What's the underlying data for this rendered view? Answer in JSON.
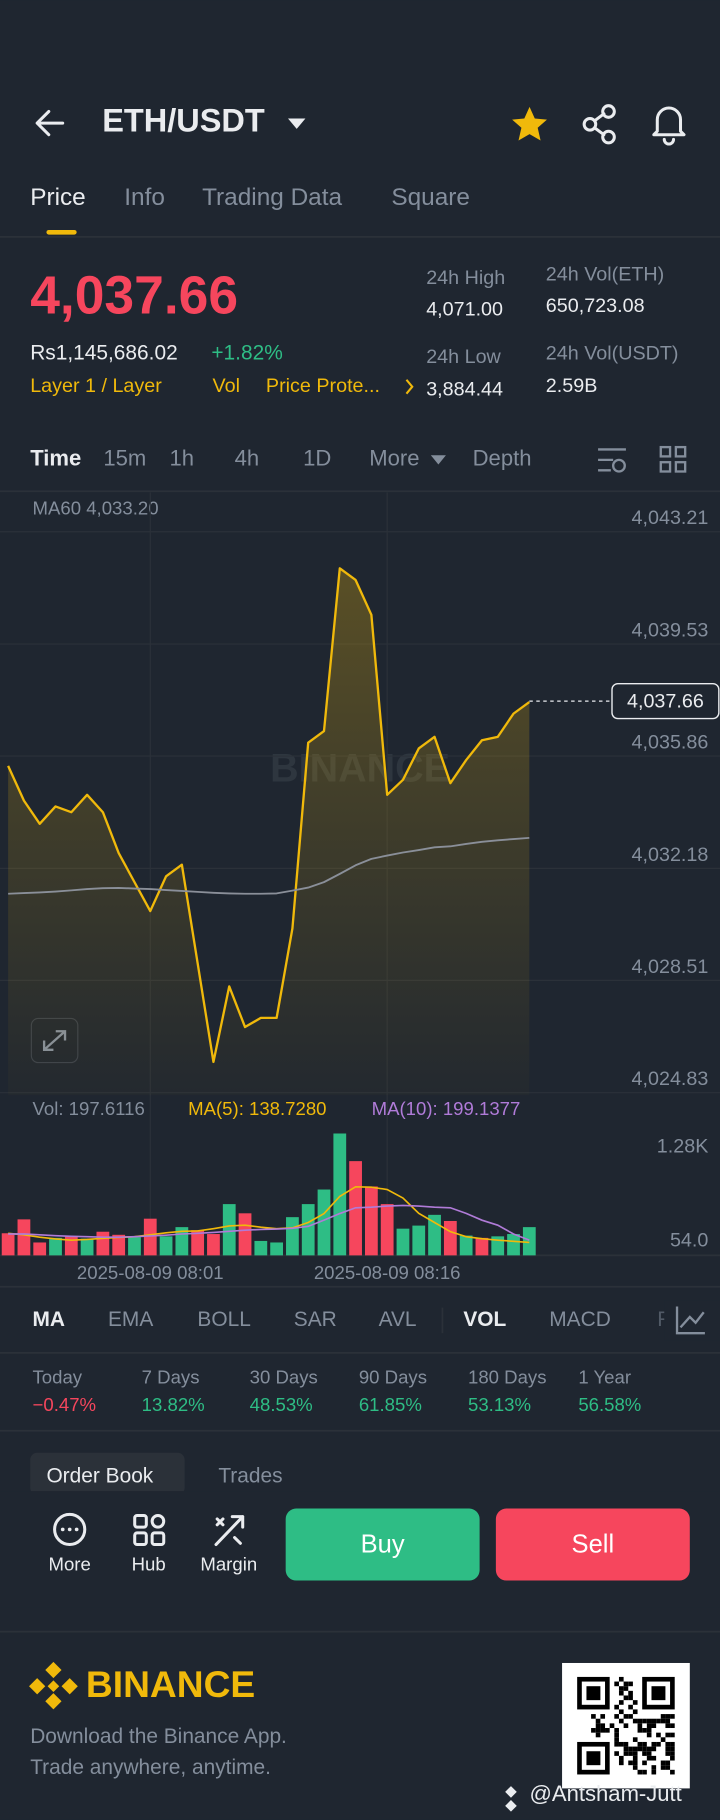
{
  "header": {
    "pair": "ETH/USDT"
  },
  "tabs": [
    "Price",
    "Info",
    "Trading Data",
    "Square"
  ],
  "ticker": {
    "price": "4,037.66",
    "fiat": "Rs1,145,686.02",
    "change": "+1.82%",
    "tags": [
      "Layer 1 / Layer",
      "Vol",
      "Price Prote..."
    ],
    "stats": [
      {
        "label": "24h High",
        "value": "4,071.00"
      },
      {
        "label": "24h Vol(ETH)",
        "value": "650,723.08"
      },
      {
        "label": "24h Low",
        "value": "3,884.44"
      },
      {
        "label": "24h Vol(USDT)",
        "value": "2.59B"
      }
    ]
  },
  "intervals": [
    "Time",
    "15m",
    "1h",
    "4h",
    "1D",
    "More",
    "Depth"
  ],
  "chart": {
    "type": "line",
    "ma60_label": "MA60 4,033.20",
    "watermark": "BINANCE",
    "categories": [
      null,
      null,
      null,
      null,
      null,
      null,
      null,
      null,
      null,
      "2025-08-09 08:01",
      null,
      null,
      null,
      null,
      null,
      null,
      null,
      null,
      null,
      null,
      null,
      null,
      null,
      null,
      "2025-08-09 08:16",
      null,
      null,
      null,
      null,
      null,
      null,
      null,
      null,
      null
    ],
    "series": [
      {
        "name": "Price",
        "color": "#f0b90b",
        "values": [
          4035.54,
          4034.4,
          4033.64,
          4034.21,
          4034.02,
          4034.59,
          4034.02,
          4032.68,
          4031.73,
          4030.78,
          4031.92,
          4032.3,
          4029.07,
          4025.84,
          4028.31,
          4026.98,
          4027.28,
          4027.28,
          4030.21,
          4036.3,
          4036.68,
          4042.01,
          4041.63,
          4040.49,
          4034.59,
          4035.08,
          4036.11,
          4036.49,
          4034.97,
          4035.73,
          4036.38,
          4036.49,
          4037.25,
          4037.63
        ]
      },
      {
        "name": "MA60",
        "color": "#8a8f99",
        "values": [
          4031.35,
          4031.37,
          4031.39,
          4031.42,
          4031.46,
          4031.5,
          4031.53,
          4031.54,
          4031.52,
          4031.5,
          4031.47,
          4031.44,
          4031.41,
          4031.38,
          4031.36,
          4031.35,
          4031.35,
          4031.36,
          4031.45,
          4031.55,
          4031.73,
          4032.0,
          4032.28,
          4032.49,
          4032.6,
          4032.7,
          4032.78,
          4032.87,
          4032.9,
          4032.98,
          4033.05,
          4033.1,
          4033.14,
          4033.18
        ]
      }
    ],
    "last_price": {
      "value": 4037.66,
      "label": "4,037.66"
    },
    "ylim": [
      4024.75,
      4044.5
    ],
    "yticks": [
      {
        "value": 4043.21,
        "label": "4,043.21"
      },
      {
        "value": 4039.53,
        "label": "4,039.53"
      },
      {
        "value": 4035.86,
        "label": "4,035.86"
      },
      {
        "value": 4032.18,
        "label": "4,032.18"
      },
      {
        "value": 4028.51,
        "label": "4,028.51"
      },
      {
        "value": 4024.83,
        "label": "4,024.83"
      }
    ]
  },
  "volume": {
    "type": "bar",
    "vol_label": "Vol: 197.6116",
    "ma5_label": "MA(5): 138.7280",
    "ma10_label": "MA(10): 199.1377",
    "values": [
      160,
      341,
      40,
      100,
      120,
      90,
      180,
      140,
      110,
      350,
      120,
      240,
      200,
      150,
      540,
      420,
      60,
      40,
      370,
      540,
      730,
      1460,
      1100,
      770,
      540,
      220,
      260,
      400,
      320,
      130,
      100,
      120,
      150,
      240
    ],
    "colors": [
      "#f6465d",
      "#f6465d",
      "#f6465d",
      "#2ebd85",
      "#f6465d",
      "#2ebd85",
      "#f6465d",
      "#f6465d",
      "#2ebd85",
      "#f6465d",
      "#2ebd85",
      "#2ebd85",
      "#f6465d",
      "#f6465d",
      "#2ebd85",
      "#f6465d",
      "#2ebd85",
      "#2ebd85",
      "#2ebd85",
      "#2ebd85",
      "#2ebd85",
      "#2ebd85",
      "#f6465d",
      "#f6465d",
      "#f6465d",
      "#2ebd85",
      "#2ebd85",
      "#2ebd85",
      "#f6465d",
      "#2ebd85",
      "#f6465d",
      "#2ebd85",
      "#2ebd85",
      "#2ebd85"
    ],
    "series": [
      {
        "name": "MA(5)",
        "color": "#f0b90b",
        "values": [
          160,
          140,
          110,
          85,
          70,
          80,
          95,
          105,
          115,
          140,
          165,
          185,
          190,
          220,
          255,
          265,
          240,
          220,
          230,
          300,
          417,
          640,
          765,
          760,
          730,
          620,
          420,
          300,
          180,
          115,
          90,
          70,
          55,
          40
        ]
      },
      {
        "name": "MA(10)",
        "color": "#b07bd8",
        "values": [
          150,
          150,
          140,
          130,
          120,
          115,
          110,
          110,
          115,
          125,
          135,
          150,
          160,
          170,
          185,
          200,
          210,
          215,
          225,
          250,
          330,
          417,
          493,
          500,
          515,
          523,
          515,
          500,
          493,
          420,
          330,
          265,
          150,
          70
        ]
      }
    ],
    "ylim": [
      -128,
      1930
    ],
    "yticks": [
      {
        "value": 1280,
        "label": "1.28K"
      },
      {
        "value": 54,
        "label": "54.0"
      }
    ]
  },
  "indicators": [
    "MA",
    "EMA",
    "BOLL",
    "SAR",
    "AVL",
    "VOL",
    "MACD",
    "R"
  ],
  "performance": [
    {
      "period": "Today",
      "change": "−0.47%"
    },
    {
      "period": "7 Days",
      "change": "13.82%"
    },
    {
      "period": "30 Days",
      "change": "48.53%"
    },
    {
      "period": "90 Days",
      "change": "61.85%"
    },
    {
      "period": "180 Days",
      "change": "53.13%"
    },
    {
      "period": "1 Year",
      "change": "56.58%"
    }
  ],
  "book_tabs": [
    "Order Book",
    "Trades"
  ],
  "actions": [
    "More",
    "Hub",
    "Margin"
  ],
  "buy": "Buy",
  "sell": "Sell",
  "footer": {
    "brand": "BINANCE",
    "lines": [
      "Download the Binance App.",
      "Trade anywhere, anytime."
    ],
    "watermark": "@Antsham-Jutt"
  }
}
